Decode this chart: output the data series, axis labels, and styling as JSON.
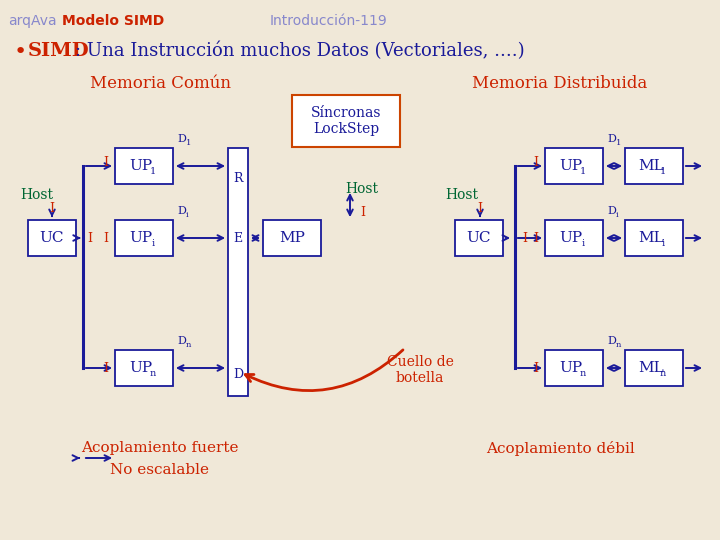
{
  "bg_color": "#f0e8d8",
  "red": "#cc2200",
  "blue": "#1a1a99",
  "green": "#006633",
  "purple": "#8888cc",
  "title_arq": "arqAva ",
  "title_bold": "Modelo SIMD",
  "title_intro": "Introducción-119",
  "bullet_simd": "SIMD",
  "bullet_rest": ": Una Instrucción muchos Datos (Vectoriales, ....)",
  "mem_comun": "Memoria Común",
  "mem_dist": "Memoria Distribuida",
  "syncronas": "Síncronas\nLockStep",
  "host": "Host",
  "cuello": "Cuello de\nbotella",
  "acop_fuerte": "Acoplamiento fuerte",
  "no_escal": "No escalable",
  "acop_debil": "Acoplamiento débil"
}
